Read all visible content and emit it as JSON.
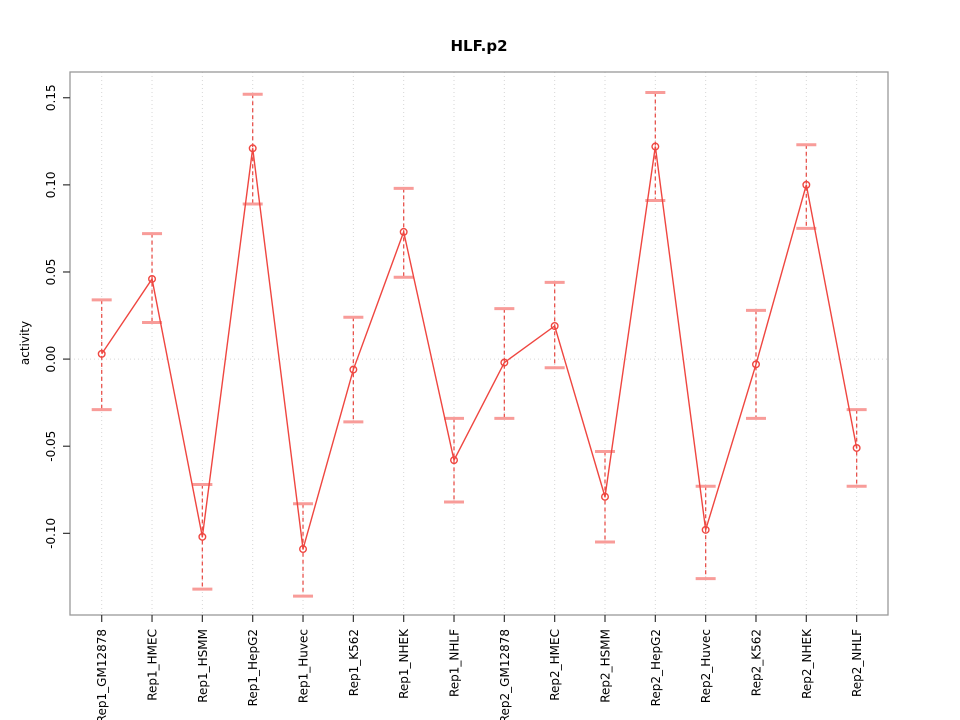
{
  "chart_data": {
    "type": "line",
    "title": "HLF.p2",
    "xlabel": "",
    "ylabel": "activity",
    "legend": "none",
    "grid": {
      "vertical_dotted_per_category": true,
      "horizontal_dotted_at": 0
    },
    "ylim": [
      -0.147,
      0.165
    ],
    "yticks": [
      0.15,
      0.1,
      0.05,
      0.0,
      -0.05,
      -0.1
    ],
    "ytick_labels": [
      "0.15",
      "0.10",
      "0.05",
      "0.00",
      "-0.05",
      "-0.10"
    ],
    "categories": [
      "Rep1_GM12878",
      "Rep1_HMEC",
      "Rep1_HSMM",
      "Rep1_HepG2",
      "Rep1_Huvec",
      "Rep1_K562",
      "Rep1_NHEK",
      "Rep1_NHLF",
      "Rep2_GM12878",
      "Rep2_HMEC",
      "Rep2_HSMM",
      "Rep2_HepG2",
      "Rep2_Huvec",
      "Rep2_K562",
      "Rep2_NHEK",
      "Rep2_NHLF"
    ],
    "series": [
      {
        "name": "activity",
        "values": [
          0.003,
          0.046,
          -0.102,
          0.121,
          -0.109,
          -0.006,
          0.073,
          -0.058,
          -0.002,
          0.019,
          -0.079,
          0.122,
          -0.098,
          -0.003,
          0.1,
          -0.051
        ],
        "err_low": [
          -0.029,
          0.021,
          -0.132,
          0.089,
          -0.136,
          -0.036,
          0.047,
          -0.082,
          -0.034,
          -0.005,
          -0.105,
          0.091,
          -0.126,
          -0.034,
          0.075,
          -0.073
        ],
        "err_high": [
          0.034,
          0.072,
          -0.072,
          0.152,
          -0.083,
          0.024,
          0.098,
          -0.034,
          0.029,
          0.044,
          -0.053,
          0.153,
          -0.073,
          0.028,
          0.123,
          -0.029
        ]
      }
    ],
    "colors": {
      "line": "#ef4640",
      "point": "#ef4640",
      "error_stem": "#e8534d",
      "error_cap": "#f89c99",
      "gridline": "#d6d6d6",
      "box": "#999999",
      "tick": "#333333",
      "text": "#000000",
      "background": "#ffffff"
    }
  }
}
